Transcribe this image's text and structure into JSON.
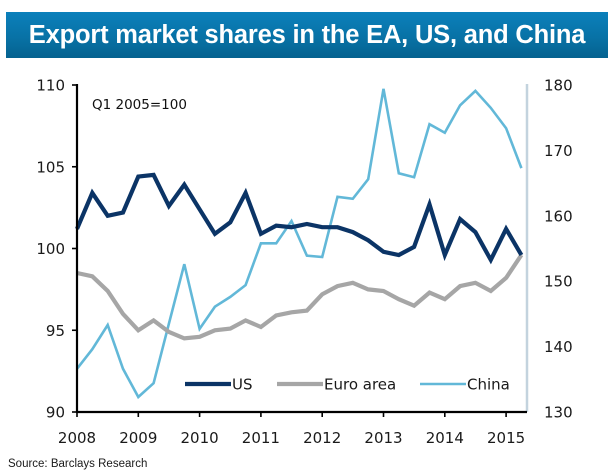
{
  "title": "Export market shares in the EA, US, and China",
  "source": "Source: Barclays Research",
  "chart_data": {
    "type": "line",
    "title": "Export market shares in the EA, US, and China",
    "annotation": "Q1 2005=100",
    "xlabel": "",
    "ylabel_left": "",
    "ylabel_right": "",
    "x_tick_labels": [
      "2008",
      "2009",
      "2010",
      "2011",
      "2012",
      "2013",
      "2014",
      "2015"
    ],
    "x_range": [
      2008.0,
      2015.33
    ],
    "x": [
      2008.0,
      2008.25,
      2008.5,
      2008.75,
      2009.0,
      2009.25,
      2009.5,
      2009.75,
      2010.0,
      2010.25,
      2010.5,
      2010.75,
      2011.0,
      2011.25,
      2011.5,
      2011.75,
      2012.0,
      2012.25,
      2012.5,
      2012.75,
      2013.0,
      2013.25,
      2013.5,
      2013.75,
      2014.0,
      2014.25,
      2014.5,
      2014.75,
      2015.0,
      2015.25
    ],
    "y_left": {
      "range": [
        90,
        110
      ],
      "ticks": [
        "90",
        "95",
        "100",
        "105",
        "110"
      ]
    },
    "y_right": {
      "range": [
        130,
        180
      ],
      "ticks": [
        "130",
        "140",
        "150",
        "160",
        "170",
        "180"
      ]
    },
    "grid": false,
    "legend_position": "bottom-center",
    "series": [
      {
        "name": "US",
        "axis": "left",
        "color": "#0b3466",
        "values": [
          101.2,
          103.4,
          102.0,
          102.2,
          104.4,
          104.5,
          102.6,
          103.9,
          102.4,
          100.9,
          101.6,
          103.4,
          100.9,
          101.4,
          101.3,
          101.5,
          101.3,
          101.3,
          101.0,
          100.5,
          99.8,
          99.6,
          100.1,
          102.7,
          99.6,
          101.8,
          101.0,
          99.3,
          101.2,
          99.6
        ]
      },
      {
        "name": "Euro area",
        "axis": "left",
        "color": "#a6a6a6",
        "values": [
          98.5,
          98.3,
          97.4,
          96.0,
          95.0,
          95.6,
          94.9,
          94.5,
          94.6,
          95.0,
          95.1,
          95.6,
          95.2,
          95.9,
          96.1,
          96.2,
          97.2,
          97.7,
          97.9,
          97.5,
          97.4,
          96.9,
          96.5,
          97.3,
          96.9,
          97.7,
          97.9,
          97.4,
          98.2,
          99.6
        ]
      },
      {
        "name": "China",
        "axis": "right",
        "color": "#62b8d8",
        "values": [
          136.6,
          139.6,
          143.3,
          136.6,
          132.3,
          134.4,
          143.5,
          152.6,
          142.7,
          146.1,
          147.6,
          149.4,
          155.8,
          155.8,
          159.2,
          153.9,
          153.7,
          162.9,
          162.6,
          165.6,
          179.4,
          166.5,
          165.9,
          174.0,
          172.7,
          176.9,
          179.1,
          176.5,
          173.4,
          167.3
        ]
      }
    ]
  }
}
